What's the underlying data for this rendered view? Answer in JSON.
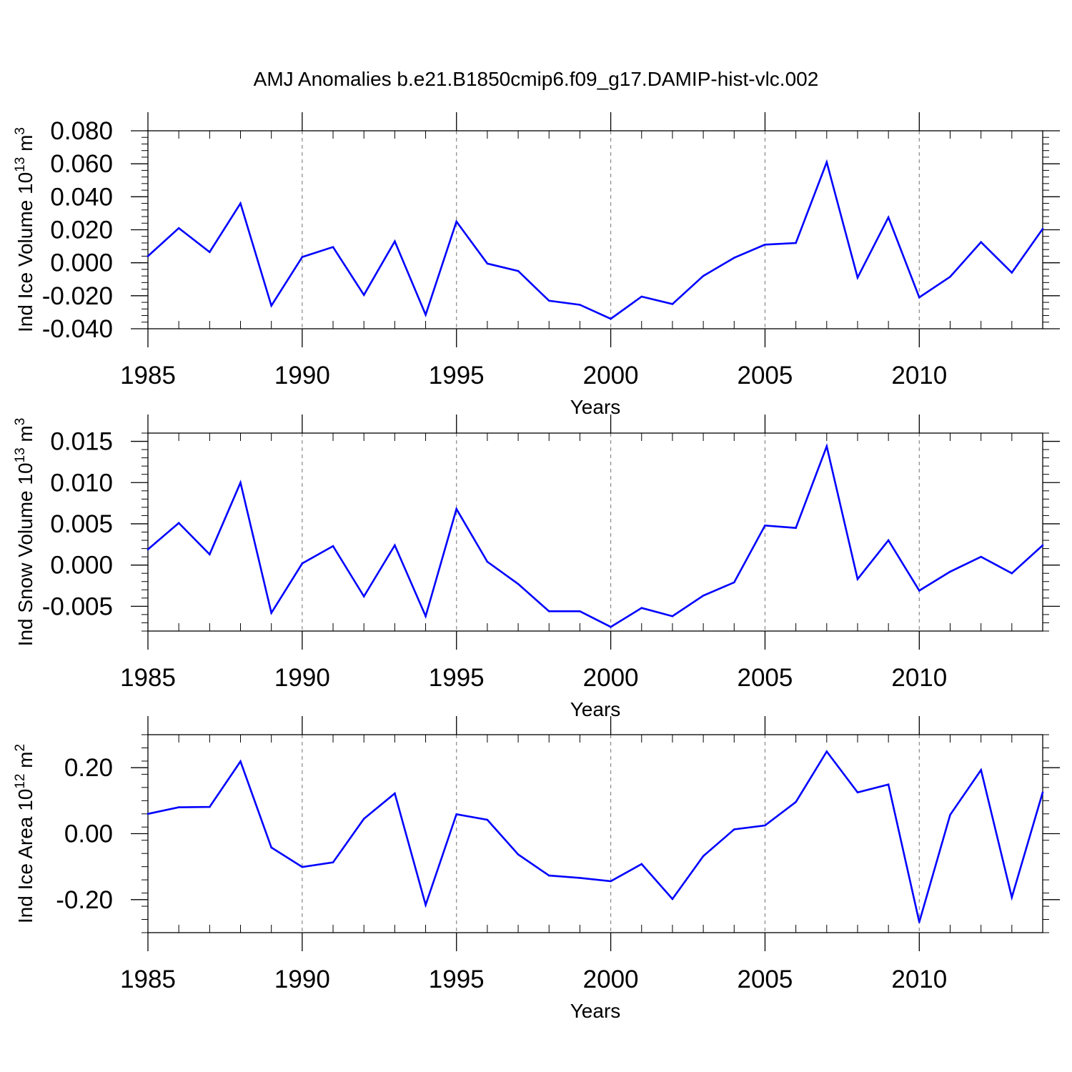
{
  "figure": {
    "title": "AMJ Anomalies b.e21.B1850cmip6.f09_g17.DAMIP-hist-vlc.002",
    "line_color": "#0000ff",
    "grid_color": "#888888"
  },
  "chart_data": [
    {
      "type": "line",
      "ylabel": {
        "base": "Ind Ice Volume 10",
        "sup1": "13",
        "mid": " m",
        "sup2": "3"
      },
      "xlabel": "Years",
      "x": [
        1985,
        1986,
        1987,
        1988,
        1989,
        1990,
        1991,
        1992,
        1993,
        1994,
        1995,
        1996,
        1997,
        1998,
        1999,
        2000,
        2001,
        2002,
        2003,
        2004,
        2005,
        2006,
        2007,
        2008,
        2009,
        2010,
        2011,
        2012,
        2013,
        2014
      ],
      "series": [
        {
          "values": [
            0.004,
            0.021,
            0.0065,
            0.036,
            -0.026,
            0.0035,
            0.0095,
            -0.0195,
            0.013,
            -0.0315,
            0.025,
            -0.0005,
            -0.005,
            -0.023,
            -0.0255,
            -0.034,
            -0.0205,
            -0.025,
            -0.008,
            0.003,
            0.011,
            0.012,
            0.061,
            -0.009,
            0.0275,
            -0.021,
            -0.0085,
            0.0125,
            -0.006,
            0.0205
          ]
        }
      ],
      "xlim": [
        1985,
        2014
      ],
      "ylim": [
        -0.04,
        0.08
      ],
      "yticks": [
        -0.04,
        -0.02,
        0.0,
        0.02,
        0.04,
        0.06,
        0.08
      ],
      "yticklabels": [
        "-0.040",
        "-0.020",
        "0.000",
        "0.020",
        "0.040",
        "0.060",
        "0.080"
      ],
      "xticks": [
        1985,
        1990,
        1995,
        2000,
        2005,
        2010
      ],
      "xticklabels": [
        "1985",
        "1990",
        "1995",
        "2000",
        "2005",
        "2010"
      ],
      "grid": "vertical dashed at major x ticks"
    },
    {
      "type": "line",
      "ylabel": {
        "base": "Ind Snow Volume 10",
        "sup1": "13",
        "mid": " m",
        "sup2": "3"
      },
      "xlabel": "Years",
      "x": [
        1985,
        1986,
        1987,
        1988,
        1989,
        1990,
        1991,
        1992,
        1993,
        1994,
        1995,
        1996,
        1997,
        1998,
        1999,
        2000,
        2001,
        2002,
        2003,
        2004,
        2005,
        2006,
        2007,
        2008,
        2009,
        2010,
        2011,
        2012,
        2013,
        2014
      ],
      "series": [
        {
          "values": [
            0.0019,
            0.0051,
            0.0013,
            0.01,
            -0.0058,
            0.0002,
            0.0023,
            -0.0038,
            0.0024,
            -0.0062,
            0.0068,
            0.0004,
            -0.0023,
            -0.0056,
            -0.0056,
            -0.0075,
            -0.0052,
            -0.0062,
            -0.0037,
            -0.0021,
            0.0048,
            0.0045,
            0.0144,
            -0.0017,
            0.003,
            -0.0031,
            -0.0008,
            0.001,
            -0.001,
            0.0024
          ]
        }
      ],
      "xlim": [
        1985,
        2014
      ],
      "ylim": [
        -0.008,
        0.016
      ],
      "yticks": [
        -0.005,
        0.0,
        0.005,
        0.01,
        0.015
      ],
      "yticklabels": [
        "-0.005",
        "0.000",
        "0.005",
        "0.010",
        "0.015"
      ],
      "xticks": [
        1985,
        1990,
        1995,
        2000,
        2005,
        2010
      ],
      "xticklabels": [
        "1985",
        "1990",
        "1995",
        "2000",
        "2005",
        "2010"
      ],
      "grid": "vertical dashed at major x ticks"
    },
    {
      "type": "line",
      "ylabel": {
        "base": "Ind Ice Area 10",
        "sup1": "12",
        "mid": " m",
        "sup2": "2"
      },
      "xlabel": "Years",
      "x": [
        1985,
        1986,
        1987,
        1988,
        1989,
        1990,
        1991,
        1992,
        1993,
        1994,
        1995,
        1996,
        1997,
        1998,
        1999,
        2000,
        2001,
        2002,
        2003,
        2004,
        2005,
        2006,
        2007,
        2008,
        2009,
        2010,
        2011,
        2012,
        2013,
        2014
      ],
      "series": [
        {
          "values": [
            0.06,
            0.08,
            0.081,
            0.219,
            -0.042,
            -0.101,
            -0.087,
            0.045,
            0.122,
            -0.216,
            0.059,
            0.042,
            -0.063,
            -0.127,
            -0.134,
            -0.144,
            -0.092,
            -0.198,
            -0.068,
            0.013,
            0.025,
            0.096,
            0.249,
            0.125,
            0.149,
            -0.268,
            0.057,
            0.193,
            -0.193,
            0.125
          ]
        }
      ],
      "xlim": [
        1985,
        2014
      ],
      "ylim": [
        -0.3,
        0.3
      ],
      "yticks": [
        -0.2,
        0.0,
        0.2
      ],
      "yticklabels": [
        "-0.20",
        "0.00",
        "0.20"
      ],
      "xticks": [
        1985,
        1990,
        1995,
        2000,
        2005,
        2010
      ],
      "xticklabels": [
        "1985",
        "1990",
        "1995",
        "2000",
        "2005",
        "2010"
      ],
      "grid": "vertical dashed at major x ticks"
    }
  ]
}
